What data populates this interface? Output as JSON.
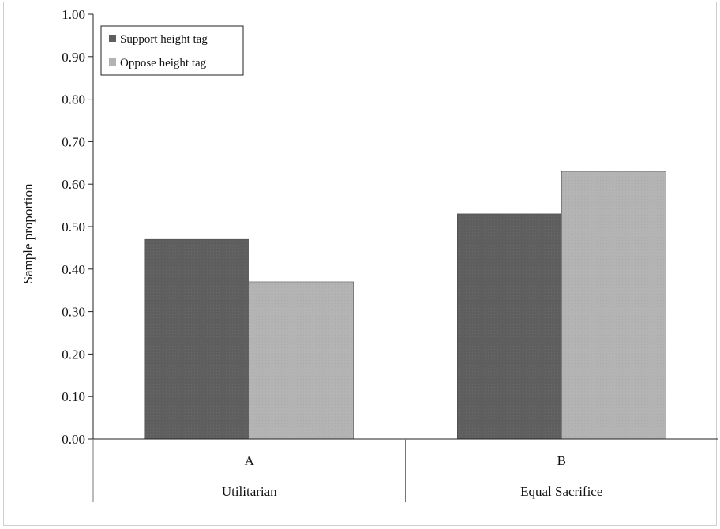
{
  "chart_data": {
    "type": "bar",
    "title": "",
    "xlabel": "",
    "ylabel": "Sample proportion",
    "ylim": [
      0,
      1
    ],
    "yticks": [
      "0.00",
      "0.10",
      "0.20",
      "0.30",
      "0.40",
      "0.50",
      "0.60",
      "0.70",
      "0.80",
      "0.90",
      "1.00"
    ],
    "categories": [
      "A",
      "B"
    ],
    "category_groups": [
      "Utilitarian",
      "Equal Sacrifice"
    ],
    "series": [
      {
        "name": "Support height tag",
        "color": "#5f5f5f",
        "values": [
          0.47,
          0.53
        ]
      },
      {
        "name": "Oppose height tag",
        "color": "#b3b3b3",
        "values": [
          0.37,
          0.63
        ]
      }
    ],
    "grid": false,
    "legend_position": "top-left"
  }
}
